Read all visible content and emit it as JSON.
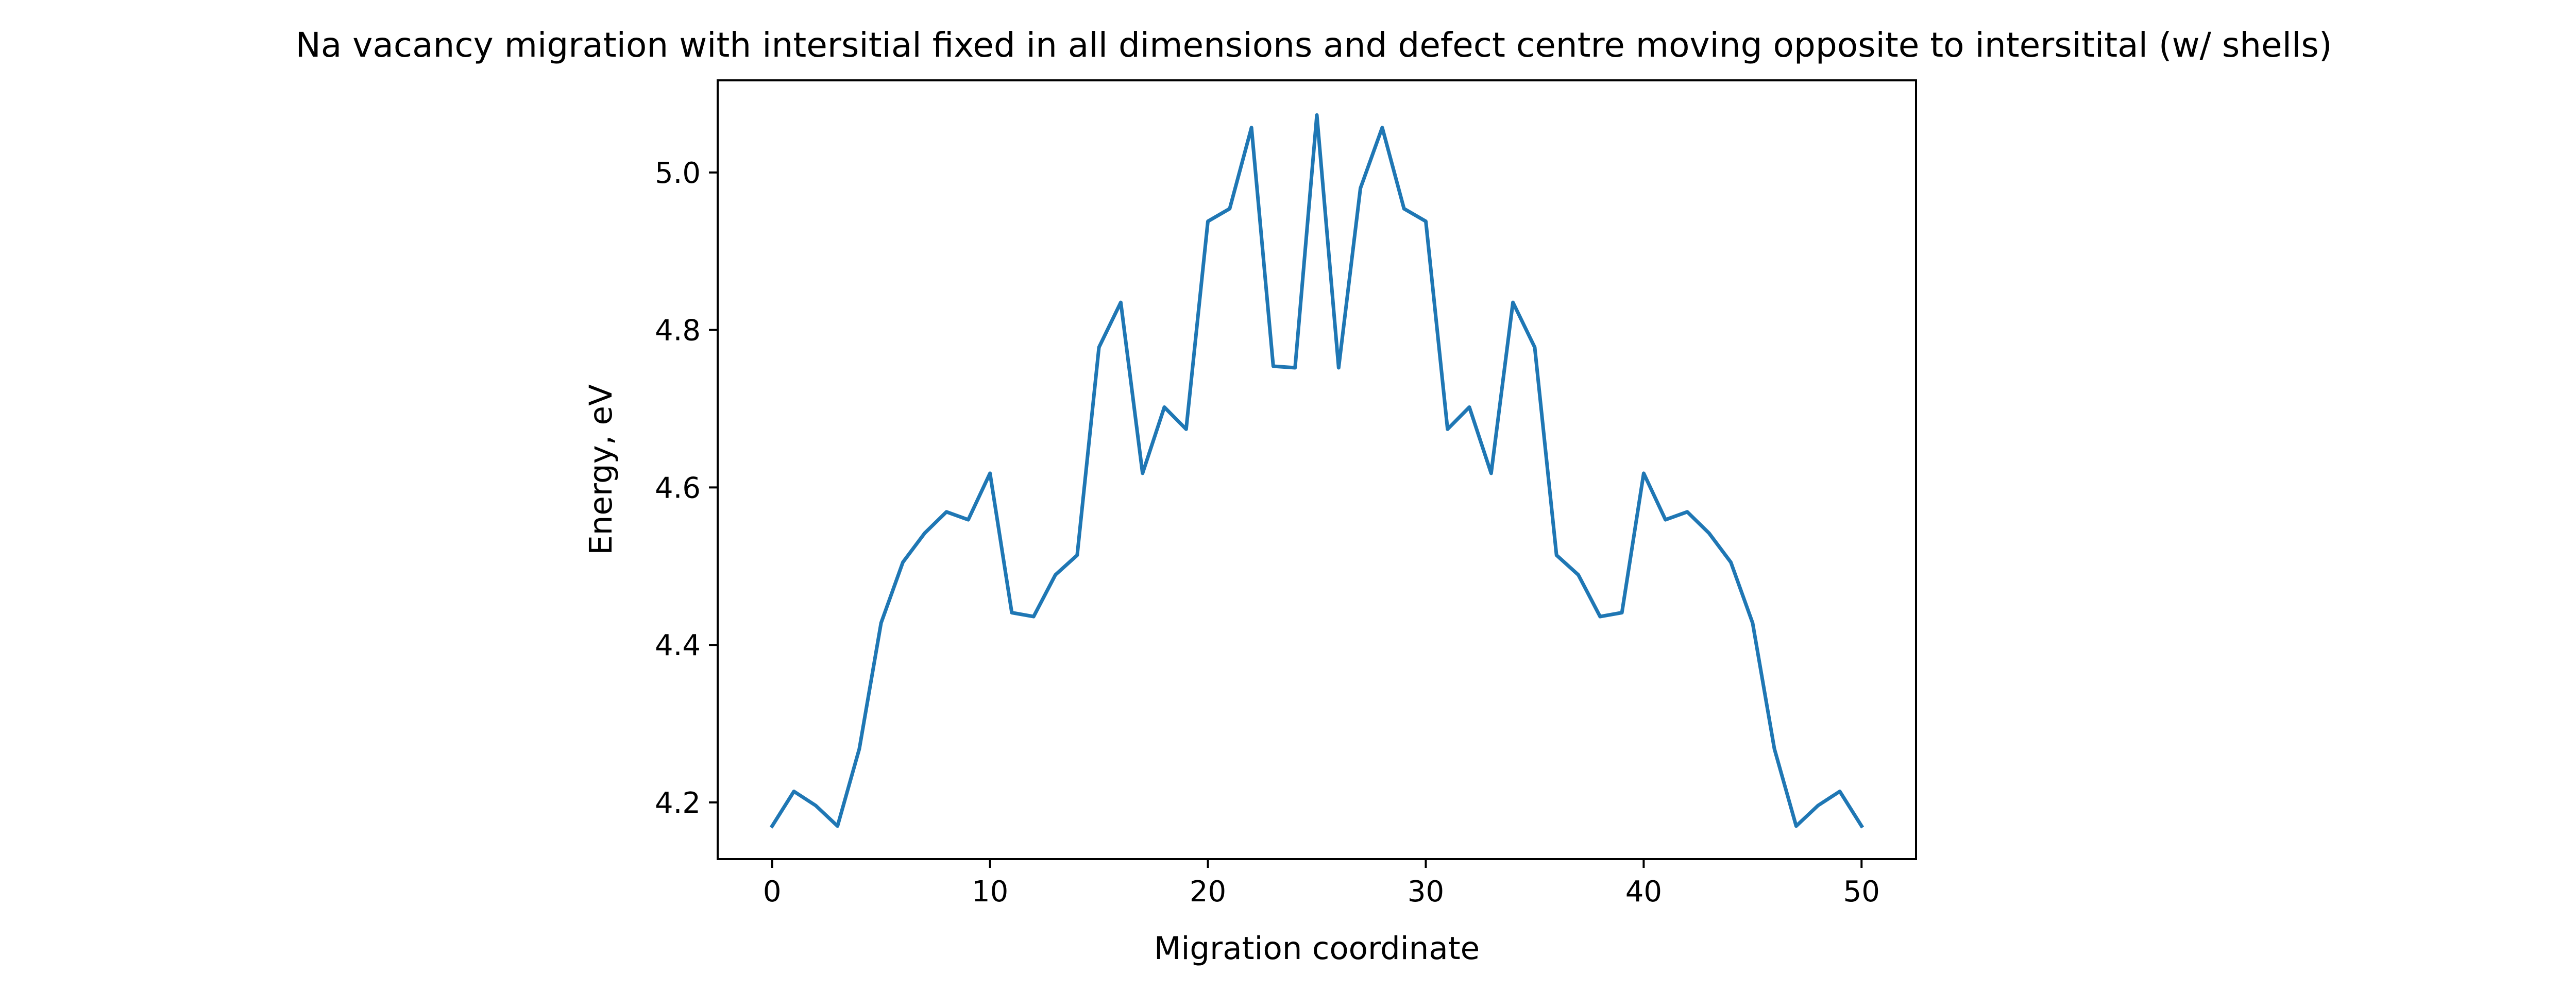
{
  "chart_data": {
    "type": "line",
    "title": "Na vacancy migration with intersitial fixed in all dimensions and defect centre moving opposite to intersitital (w/ shells)",
    "xlabel": "Migration coordinate",
    "ylabel": "Energy, eV",
    "xlim": [
      -2.5,
      52.5
    ],
    "ylim": [
      4.128,
      5.117
    ],
    "xticks": [
      0,
      10,
      20,
      30,
      40,
      50
    ],
    "xtick_labels": [
      "0",
      "10",
      "20",
      "30",
      "40",
      "50"
    ],
    "yticks": [
      4.2,
      4.4,
      4.6,
      4.8,
      5.0
    ],
    "ytick_labels": [
      "4.2",
      "4.4",
      "4.6",
      "4.8",
      "5.0"
    ],
    "grid": false,
    "legend": "none",
    "series": [
      {
        "color": "#1f77b4",
        "x": [
          0,
          1,
          2,
          3,
          4,
          5,
          6,
          7,
          8,
          9,
          10,
          11,
          12,
          13,
          14,
          15,
          16,
          17,
          18,
          19,
          20,
          21,
          22,
          23,
          24,
          25,
          26,
          27,
          28,
          29,
          30,
          31,
          32,
          33,
          34,
          35,
          36,
          37,
          38,
          39,
          40,
          41,
          42,
          43,
          44,
          45,
          46,
          47,
          48,
          49,
          50
        ],
        "y": [
          4.17,
          4.214,
          4.196,
          4.17,
          4.268,
          4.428,
          4.505,
          4.542,
          4.569,
          4.559,
          4.618,
          4.441,
          4.436,
          4.489,
          4.514,
          4.778,
          4.835,
          4.618,
          4.702,
          4.674,
          4.938,
          4.954,
          5.057,
          4.754,
          4.752,
          5.073,
          4.752,
          4.98,
          5.057,
          4.954,
          4.938,
          4.674,
          4.702,
          4.618,
          4.835,
          4.778,
          4.514,
          4.489,
          4.436,
          4.441,
          4.618,
          4.559,
          4.569,
          4.542,
          4.505,
          4.428,
          4.268,
          4.17,
          4.196,
          4.214,
          4.17
        ]
      }
    ]
  }
}
